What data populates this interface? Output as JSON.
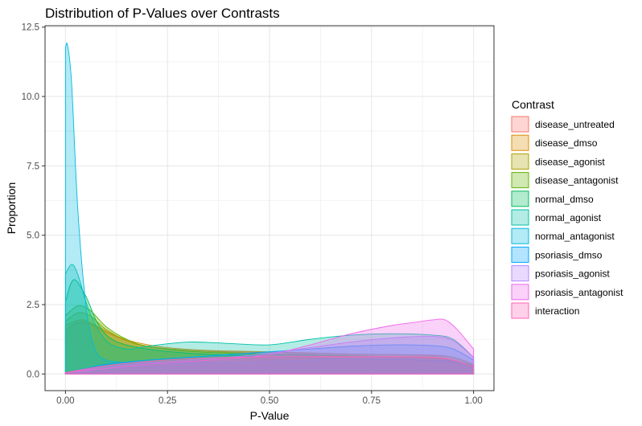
{
  "chart_data": {
    "type": "area",
    "subtype": "density",
    "title": "Distribution of P-Values over Contrasts",
    "xlabel": "P-Value",
    "ylabel": "Proportion",
    "xlim": [
      -0.05,
      1.05
    ],
    "ylim": [
      -0.6,
      12.55
    ],
    "x_ticks": [
      0.0,
      0.25,
      0.5,
      0.75,
      1.0
    ],
    "x_tick_labels": [
      "0.00",
      "0.25",
      "0.50",
      "0.75",
      "1.00"
    ],
    "y_ticks": [
      0.0,
      2.5,
      5.0,
      7.5,
      10.0,
      12.5
    ],
    "y_tick_labels": [
      "0.0",
      "2.5",
      "5.0",
      "7.5",
      "10.0",
      "12.5"
    ],
    "grid": true,
    "legend_title": "Contrast",
    "legend_position": "right",
    "fill_opacity": 0.3,
    "series": [
      {
        "name": "disease_untreated",
        "color": "#F8766D",
        "points": [
          [
            0,
            1.6
          ],
          [
            0.03,
            1.85
          ],
          [
            0.06,
            1.8
          ],
          [
            0.1,
            1.5
          ],
          [
            0.15,
            1.2
          ],
          [
            0.2,
            1.0
          ],
          [
            0.3,
            0.85
          ],
          [
            0.4,
            0.8
          ],
          [
            0.5,
            0.78
          ],
          [
            0.6,
            0.75
          ],
          [
            0.7,
            0.72
          ],
          [
            0.8,
            0.7
          ],
          [
            0.9,
            0.68
          ],
          [
            0.95,
            0.6
          ],
          [
            1.0,
            0.35
          ]
        ]
      },
      {
        "name": "disease_dmso",
        "color": "#DB8E00",
        "points": [
          [
            0,
            1.75
          ],
          [
            0.04,
            1.95
          ],
          [
            0.08,
            1.7
          ],
          [
            0.12,
            1.4
          ],
          [
            0.17,
            1.15
          ],
          [
            0.25,
            0.95
          ],
          [
            0.35,
            0.85
          ],
          [
            0.5,
            0.8
          ],
          [
            0.6,
            0.76
          ],
          [
            0.7,
            0.72
          ],
          [
            0.8,
            0.7
          ],
          [
            0.9,
            0.66
          ],
          [
            0.95,
            0.6
          ],
          [
            1.0,
            0.35
          ]
        ]
      },
      {
        "name": "disease_agonist",
        "color": "#AEA200",
        "points": [
          [
            0,
            1.9
          ],
          [
            0.03,
            2.2
          ],
          [
            0.06,
            2.1
          ],
          [
            0.1,
            1.6
          ],
          [
            0.15,
            1.2
          ],
          [
            0.2,
            1.0
          ],
          [
            0.3,
            0.85
          ],
          [
            0.4,
            0.78
          ],
          [
            0.5,
            0.72
          ],
          [
            0.6,
            0.7
          ],
          [
            0.7,
            0.66
          ],
          [
            0.8,
            0.62
          ],
          [
            0.9,
            0.58
          ],
          [
            0.95,
            0.5
          ],
          [
            1.0,
            0.3
          ]
        ]
      },
      {
        "name": "disease_antagonist",
        "color": "#64B200",
        "points": [
          [
            0,
            2.1
          ],
          [
            0.03,
            2.45
          ],
          [
            0.06,
            2.3
          ],
          [
            0.1,
            1.7
          ],
          [
            0.15,
            1.25
          ],
          [
            0.2,
            1.0
          ],
          [
            0.3,
            0.82
          ],
          [
            0.4,
            0.75
          ],
          [
            0.5,
            0.7
          ],
          [
            0.6,
            0.68
          ],
          [
            0.7,
            0.64
          ],
          [
            0.8,
            0.6
          ],
          [
            0.9,
            0.56
          ],
          [
            0.95,
            0.48
          ],
          [
            1.0,
            0.3
          ]
        ]
      },
      {
        "name": "normal_dmso",
        "color": "#00BD5C",
        "points": [
          [
            0,
            2.6
          ],
          [
            0.02,
            3.4
          ],
          [
            0.05,
            2.8
          ],
          [
            0.08,
            1.8
          ],
          [
            0.12,
            1.2
          ],
          [
            0.2,
            0.9
          ],
          [
            0.3,
            0.75
          ],
          [
            0.4,
            0.68
          ],
          [
            0.5,
            0.62
          ],
          [
            0.6,
            0.58
          ],
          [
            0.7,
            0.55
          ],
          [
            0.8,
            0.52
          ],
          [
            0.9,
            0.48
          ],
          [
            0.95,
            0.42
          ],
          [
            1.0,
            0.25
          ]
        ]
      },
      {
        "name": "normal_agonist",
        "color": "#00C1A7",
        "points": [
          [
            0,
            3.6
          ],
          [
            0.015,
            3.95
          ],
          [
            0.03,
            3.6
          ],
          [
            0.06,
            2.2
          ],
          [
            0.1,
            1.2
          ],
          [
            0.15,
            0.9
          ],
          [
            0.2,
            1.0
          ],
          [
            0.3,
            1.15
          ],
          [
            0.4,
            1.1
          ],
          [
            0.5,
            1.05
          ],
          [
            0.6,
            1.25
          ],
          [
            0.7,
            1.4
          ],
          [
            0.8,
            1.45
          ],
          [
            0.9,
            1.4
          ],
          [
            0.95,
            1.25
          ],
          [
            1.0,
            0.6
          ]
        ]
      },
      {
        "name": "normal_antagonist",
        "color": "#00BADE",
        "points": [
          [
            0,
            11.75
          ],
          [
            0.005,
            11.85
          ],
          [
            0.015,
            10.5
          ],
          [
            0.03,
            6.0
          ],
          [
            0.05,
            2.5
          ],
          [
            0.07,
            1.0
          ],
          [
            0.1,
            0.5
          ],
          [
            0.2,
            0.4
          ],
          [
            0.3,
            0.4
          ],
          [
            0.4,
            0.42
          ],
          [
            0.5,
            0.45
          ],
          [
            0.6,
            0.5
          ],
          [
            0.7,
            0.55
          ],
          [
            0.8,
            0.55
          ],
          [
            0.9,
            0.5
          ],
          [
            0.95,
            0.45
          ],
          [
            1.0,
            0.2
          ]
        ]
      },
      {
        "name": "psoriasis_dmso",
        "color": "#00A6FF",
        "points": [
          [
            0,
            0.05
          ],
          [
            0.05,
            0.2
          ],
          [
            0.1,
            0.35
          ],
          [
            0.2,
            0.5
          ],
          [
            0.3,
            0.6
          ],
          [
            0.4,
            0.7
          ],
          [
            0.5,
            0.8
          ],
          [
            0.6,
            0.9
          ],
          [
            0.7,
            1.0
          ],
          [
            0.8,
            1.05
          ],
          [
            0.9,
            1.02
          ],
          [
            0.95,
            0.9
          ],
          [
            1.0,
            0.5
          ]
        ]
      },
      {
        "name": "psoriasis_agonist",
        "color": "#B385FF",
        "points": [
          [
            0,
            0.05
          ],
          [
            0.1,
            0.25
          ],
          [
            0.2,
            0.4
          ],
          [
            0.3,
            0.5
          ],
          [
            0.4,
            0.6
          ],
          [
            0.5,
            0.75
          ],
          [
            0.6,
            0.95
          ],
          [
            0.7,
            1.15
          ],
          [
            0.8,
            1.3
          ],
          [
            0.9,
            1.35
          ],
          [
            0.95,
            1.2
          ],
          [
            1.0,
            0.6
          ]
        ]
      },
      {
        "name": "psoriasis_antagonist",
        "color": "#EF67EB",
        "points": [
          [
            0,
            0.05
          ],
          [
            0.1,
            0.2
          ],
          [
            0.2,
            0.35
          ],
          [
            0.3,
            0.45
          ],
          [
            0.4,
            0.55
          ],
          [
            0.5,
            0.7
          ],
          [
            0.6,
            1.05
          ],
          [
            0.7,
            1.45
          ],
          [
            0.8,
            1.75
          ],
          [
            0.85,
            1.85
          ],
          [
            0.9,
            1.95
          ],
          [
            0.93,
            1.95
          ],
          [
            0.96,
            1.6
          ],
          [
            1.0,
            0.9
          ]
        ]
      },
      {
        "name": "interaction",
        "color": "#FF63B6",
        "points": [
          [
            0,
            0.05
          ],
          [
            0.1,
            0.3
          ],
          [
            0.2,
            0.45
          ],
          [
            0.3,
            0.55
          ],
          [
            0.4,
            0.6
          ],
          [
            0.5,
            0.62
          ],
          [
            0.6,
            0.62
          ],
          [
            0.7,
            0.62
          ],
          [
            0.8,
            0.62
          ],
          [
            0.9,
            0.6
          ],
          [
            0.95,
            0.5
          ],
          [
            1.0,
            0.25
          ]
        ]
      }
    ]
  }
}
